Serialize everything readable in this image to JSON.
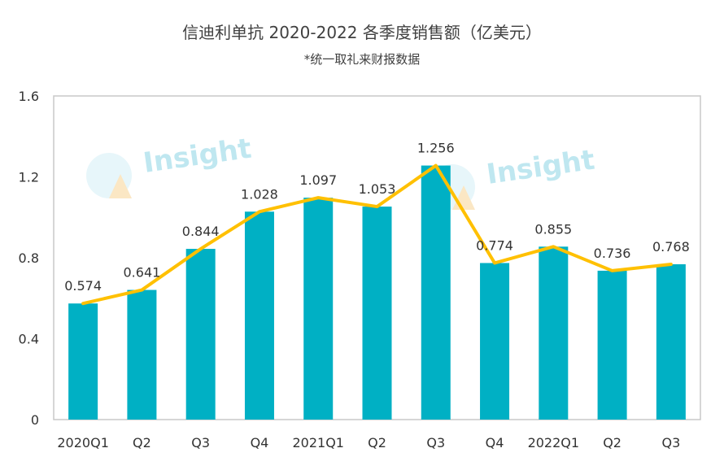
{
  "chart_data": {
    "type": "bar",
    "title": "信迪利单抗 2020-2022 各季度销售额（亿美元）",
    "subtitle": "*统一取礼来财报数据",
    "categories": [
      "2020Q1",
      "Q2",
      "Q3",
      "Q4",
      "2021Q1",
      "Q2",
      "Q3",
      "Q4",
      "2022Q1",
      "Q2",
      "Q3"
    ],
    "values": [
      0.574,
      0.641,
      0.844,
      1.028,
      1.097,
      1.053,
      1.256,
      0.774,
      0.855,
      0.736,
      0.768
    ],
    "value_labels": [
      "0.574",
      "0.641",
      "0.844",
      "1.028",
      "1.097",
      "1.053",
      "1.256",
      "0.774",
      "0.855",
      "0.736",
      "0.768"
    ],
    "overlay_line": true,
    "ylim": [
      0,
      1.6
    ],
    "yticks": [
      0,
      0.4,
      0.8,
      1.2,
      1.6
    ],
    "ytick_labels": [
      "0",
      "0.4",
      "0.8",
      "1.2",
      "1.6"
    ],
    "grid": false,
    "legend": "none",
    "watermark": "Insight",
    "colors": {
      "bar": "#00b0c4",
      "line": "#ffc000",
      "frame": "#c8c8c8",
      "watermark": "#bfe7f0"
    }
  }
}
